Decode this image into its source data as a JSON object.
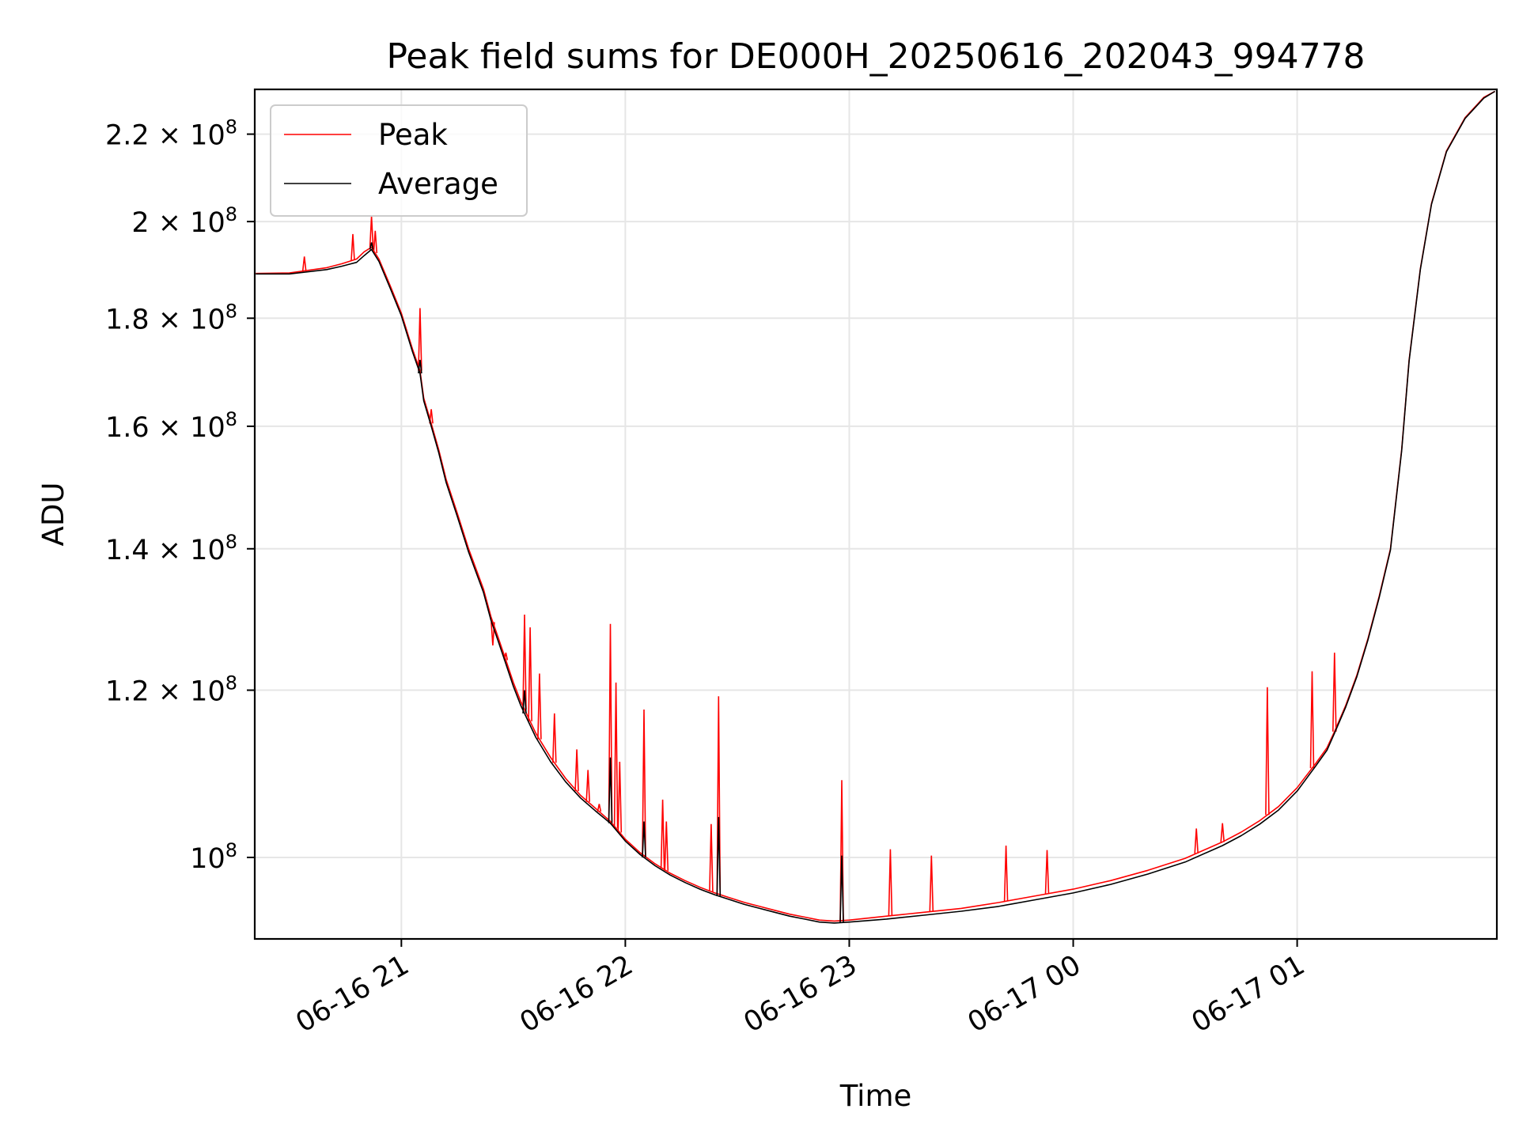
{
  "chart_data": {
    "type": "line",
    "title": "Peak field sums for DE000H_20250616_202043_994778",
    "xlabel": "Time",
    "ylabel": "ADU",
    "x_ticks": [
      {
        "t": "2025-06-16T21:00",
        "label": "06-16 21"
      },
      {
        "t": "2025-06-16T22:00",
        "label": "06-16 22"
      },
      {
        "t": "2025-06-16T23:00",
        "label": "06-16 23"
      },
      {
        "t": "2025-06-17T00:00",
        "label": "06-17 00"
      },
      {
        "t": "2025-06-17T01:00",
        "label": "06-17 01"
      }
    ],
    "x_range": [
      "2025-06-16T20:20:43",
      "2025-06-17T01:53:30"
    ],
    "y_scale": "log",
    "y_range": [
      91500000,
      231000000
    ],
    "y_ticks": [
      {
        "value": 100000000,
        "mantissa": "",
        "exponent": "8"
      },
      {
        "value": 120000000,
        "mantissa": "1.2",
        "exponent": "8"
      },
      {
        "value": 140000000,
        "mantissa": "1.4",
        "exponent": "8"
      },
      {
        "value": 160000000,
        "mantissa": "1.6",
        "exponent": "8"
      },
      {
        "value": 180000000,
        "mantissa": "1.8",
        "exponent": "8"
      },
      {
        "value": 200000000,
        "mantissa": "2",
        "exponent": "8"
      },
      {
        "value": 220000000,
        "mantissa": "2.2",
        "exponent": "8"
      }
    ],
    "grid": true,
    "legend_position": "top-left",
    "series": [
      {
        "name": "Peak",
        "color": "#ff0000",
        "x": [
          "2025-06-16T20:21",
          "2025-06-16T20:30",
          "2025-06-16T20:40",
          "2025-06-16T20:44",
          "2025-06-16T20:46",
          "2025-06-16T20:48",
          "2025-06-16T20:50",
          "2025-06-16T20:52",
          "2025-06-16T20:54",
          "2025-06-16T20:57",
          "2025-06-16T21:00",
          "2025-06-16T21:03",
          "2025-06-16T21:05",
          "2025-06-16T21:06",
          "2025-06-16T21:08",
          "2025-06-16T21:10",
          "2025-06-16T21:12",
          "2025-06-16T21:15",
          "2025-06-16T21:18",
          "2025-06-16T21:22",
          "2025-06-16T21:24",
          "2025-06-16T21:26",
          "2025-06-16T21:28",
          "2025-06-16T21:30",
          "2025-06-16T21:32",
          "2025-06-16T21:34",
          "2025-06-16T21:36",
          "2025-06-16T21:40",
          "2025-06-16T21:44",
          "2025-06-16T21:48",
          "2025-06-16T21:52",
          "2025-06-16T21:56",
          "2025-06-16T21:58",
          "2025-06-16T22:00",
          "2025-06-16T22:04",
          "2025-06-16T22:08",
          "2025-06-16T22:12",
          "2025-06-16T22:16",
          "2025-06-16T22:20",
          "2025-06-16T22:24",
          "2025-06-16T22:28",
          "2025-06-16T22:32",
          "2025-06-16T22:36",
          "2025-06-16T22:40",
          "2025-06-16T22:44",
          "2025-06-16T22:48",
          "2025-06-16T22:52",
          "2025-06-16T22:56",
          "2025-06-16T23:00",
          "2025-06-16T23:10",
          "2025-06-16T23:20",
          "2025-06-16T23:30",
          "2025-06-16T23:40",
          "2025-06-16T23:50",
          "2025-06-17T00:00",
          "2025-06-17T00:10",
          "2025-06-17T00:20",
          "2025-06-17T00:30",
          "2025-06-17T00:40",
          "2025-06-17T00:45",
          "2025-06-17T00:50",
          "2025-06-17T00:55",
          "2025-06-17T01:00",
          "2025-06-17T01:05",
          "2025-06-17T01:08",
          "2025-06-17T01:10",
          "2025-06-17T01:13",
          "2025-06-17T01:16",
          "2025-06-17T01:19",
          "2025-06-17T01:22",
          "2025-06-17T01:25",
          "2025-06-17T01:28",
          "2025-06-17T01:30",
          "2025-06-17T01:33",
          "2025-06-17T01:36",
          "2025-06-17T01:40",
          "2025-06-17T01:45",
          "2025-06-17T01:50",
          "2025-06-17T01:53"
        ],
        "y": [
          189000000,
          189100000,
          190200000,
          191000000,
          191500000,
          192000000,
          193500000,
          194500000,
          192000000,
          186500000,
          181000000,
          174000000,
          170000000,
          165000000,
          160500000,
          156000000,
          151000000,
          145500000,
          140000000,
          134000000,
          130000000,
          127000000,
          124000000,
          121000000,
          118500000,
          116500000,
          114500000,
          111500000,
          109000000,
          107000000,
          105500000,
          104000000,
          103000000,
          102000000,
          100500000,
          99300000,
          98300000,
          97500000,
          96800000,
          96200000,
          95700000,
          95200000,
          94800000,
          94400000,
          94000000,
          93700000,
          93400000,
          93300000,
          93400000,
          93800000,
          94200000,
          94600000,
          95200000,
          95900000,
          96600000,
          97500000,
          98600000,
          99900000,
          101700000,
          102800000,
          104100000,
          105700000,
          107900000,
          110800000,
          112700000,
          114700000,
          118000000,
          122000000,
          127000000,
          133000000,
          140000000,
          156000000,
          172000000,
          190000000,
          204000000,
          216000000,
          224000000,
          229000000,
          230500000
        ],
        "spikes": [
          {
            "t": "2025-06-16T20:34:00",
            "y": 192500000
          },
          {
            "t": "2025-06-16T20:47:00",
            "y": 197300000
          },
          {
            "t": "2025-06-16T20:52:00",
            "y": 201200000
          },
          {
            "t": "2025-06-16T20:53:00",
            "y": 198000000
          },
          {
            "t": "2025-06-16T21:05:00",
            "y": 182000000
          },
          {
            "t": "2025-06-16T21:08:00",
            "y": 163000000
          },
          {
            "t": "2025-06-16T21:24:30",
            "y": 126000000
          },
          {
            "t": "2025-06-16T21:28:00",
            "y": 125000000
          },
          {
            "t": "2025-06-16T21:33:00",
            "y": 130300000
          },
          {
            "t": "2025-06-16T21:34:30",
            "y": 128500000
          },
          {
            "t": "2025-06-16T21:37:00",
            "y": 122200000
          },
          {
            "t": "2025-06-16T21:41:00",
            "y": 117000000
          },
          {
            "t": "2025-06-16T21:47:00",
            "y": 112500000
          },
          {
            "t": "2025-06-16T21:50:00",
            "y": 110000000
          },
          {
            "t": "2025-06-16T21:53:00",
            "y": 106000000
          },
          {
            "t": "2025-06-16T21:56:00",
            "y": 129000000
          },
          {
            "t": "2025-06-16T21:57:30",
            "y": 121000000
          },
          {
            "t": "2025-06-16T21:58:30",
            "y": 111000000
          },
          {
            "t": "2025-06-16T22:05:00",
            "y": 117500000
          },
          {
            "t": "2025-06-16T22:10:00",
            "y": 106500000
          },
          {
            "t": "2025-06-16T22:11:00",
            "y": 104000000
          },
          {
            "t": "2025-06-16T22:23:00",
            "y": 103700000
          },
          {
            "t": "2025-06-16T22:25:00",
            "y": 119200000
          },
          {
            "t": "2025-06-16T22:58:00",
            "y": 108800000
          },
          {
            "t": "2025-06-16T23:11:00",
            "y": 100900000
          },
          {
            "t": "2025-06-16T23:22:00",
            "y": 100200000
          },
          {
            "t": "2025-06-16T23:42:00",
            "y": 101300000
          },
          {
            "t": "2025-06-16T23:53:00",
            "y": 100800000
          },
          {
            "t": "2025-06-17T00:33:00",
            "y": 103200000
          },
          {
            "t": "2025-06-17T00:40:00",
            "y": 103800000
          },
          {
            "t": "2025-06-17T00:52:00",
            "y": 120400000
          },
          {
            "t": "2025-06-17T01:04:00",
            "y": 122500000
          },
          {
            "t": "2025-06-17T01:10:00",
            "y": 125000000
          }
        ]
      },
      {
        "name": "Average",
        "color": "#000000",
        "x": [
          "2025-06-16T20:21",
          "2025-06-16T20:30",
          "2025-06-16T20:40",
          "2025-06-16T20:44",
          "2025-06-16T20:46",
          "2025-06-16T20:48",
          "2025-06-16T20:50",
          "2025-06-16T20:52",
          "2025-06-16T20:54",
          "2025-06-16T20:57",
          "2025-06-16T21:00",
          "2025-06-16T21:03",
          "2025-06-16T21:05",
          "2025-06-16T21:06",
          "2025-06-16T21:08",
          "2025-06-16T21:10",
          "2025-06-16T21:12",
          "2025-06-16T21:15",
          "2025-06-16T21:18",
          "2025-06-16T21:22",
          "2025-06-16T21:24",
          "2025-06-16T21:26",
          "2025-06-16T21:28",
          "2025-06-16T21:30",
          "2025-06-16T21:32",
          "2025-06-16T21:34",
          "2025-06-16T21:36",
          "2025-06-16T21:40",
          "2025-06-16T21:44",
          "2025-06-16T21:48",
          "2025-06-16T21:52",
          "2025-06-16T21:56",
          "2025-06-16T21:58",
          "2025-06-16T22:00",
          "2025-06-16T22:04",
          "2025-06-16T22:08",
          "2025-06-16T22:12",
          "2025-06-16T22:16",
          "2025-06-16T22:20",
          "2025-06-16T22:24",
          "2025-06-16T22:28",
          "2025-06-16T22:32",
          "2025-06-16T22:36",
          "2025-06-16T22:40",
          "2025-06-16T22:44",
          "2025-06-16T22:48",
          "2025-06-16T22:52",
          "2025-06-16T22:56",
          "2025-06-16T23:00",
          "2025-06-16T23:10",
          "2025-06-16T23:20",
          "2025-06-16T23:30",
          "2025-06-16T23:40",
          "2025-06-16T23:50",
          "2025-06-17T00:00",
          "2025-06-17T00:10",
          "2025-06-17T00:20",
          "2025-06-17T00:30",
          "2025-06-17T00:40",
          "2025-06-17T00:45",
          "2025-06-17T00:50",
          "2025-06-17T00:55",
          "2025-06-17T01:00",
          "2025-06-17T01:05",
          "2025-06-17T01:08",
          "2025-06-17T01:10",
          "2025-06-17T01:13",
          "2025-06-17T01:16",
          "2025-06-17T01:19",
          "2025-06-17T01:22",
          "2025-06-17T01:25",
          "2025-06-17T01:28",
          "2025-06-17T01:30",
          "2025-06-17T01:33",
          "2025-06-17T01:36",
          "2025-06-17T01:40",
          "2025-06-17T01:45",
          "2025-06-17T01:50",
          "2025-06-17T01:53"
        ],
        "y": [
          188900000,
          188900000,
          189800000,
          190500000,
          190900000,
          191300000,
          192700000,
          194000000,
          191500000,
          186000000,
          180500000,
          173500000,
          169500000,
          164500000,
          160000000,
          155500000,
          150500000,
          145000000,
          139500000,
          133500000,
          129500000,
          126500000,
          123500000,
          120500000,
          118000000,
          116000000,
          114000000,
          111000000,
          108600000,
          106700000,
          105200000,
          103800000,
          102800000,
          101800000,
          100300000,
          99100000,
          98100000,
          97300000,
          96600000,
          96000000,
          95500000,
          95000000,
          94600000,
          94200000,
          93800000,
          93500000,
          93200000,
          93100000,
          93200000,
          93500000,
          93900000,
          94300000,
          94800000,
          95500000,
          96200000,
          97100000,
          98200000,
          99500000,
          101300000,
          102400000,
          103700000,
          105300000,
          107500000,
          110500000,
          112400000,
          114500000,
          117800000,
          121800000,
          126800000,
          132800000,
          139800000,
          155800000,
          171800000,
          189800000,
          203800000,
          215800000,
          223800000,
          228800000,
          230500000
        ],
        "spikes": [
          {
            "t": "2025-06-16T20:52:00",
            "y": 195500000
          },
          {
            "t": "2025-06-16T21:05:00",
            "y": 172000000
          },
          {
            "t": "2025-06-16T21:33:00",
            "y": 120000000
          },
          {
            "t": "2025-06-16T21:56:00",
            "y": 111500000
          },
          {
            "t": "2025-06-16T22:05:00",
            "y": 104000000
          },
          {
            "t": "2025-06-16T22:25:00",
            "y": 104500000
          },
          {
            "t": "2025-06-16T22:58:00",
            "y": 100200000
          }
        ]
      }
    ]
  }
}
